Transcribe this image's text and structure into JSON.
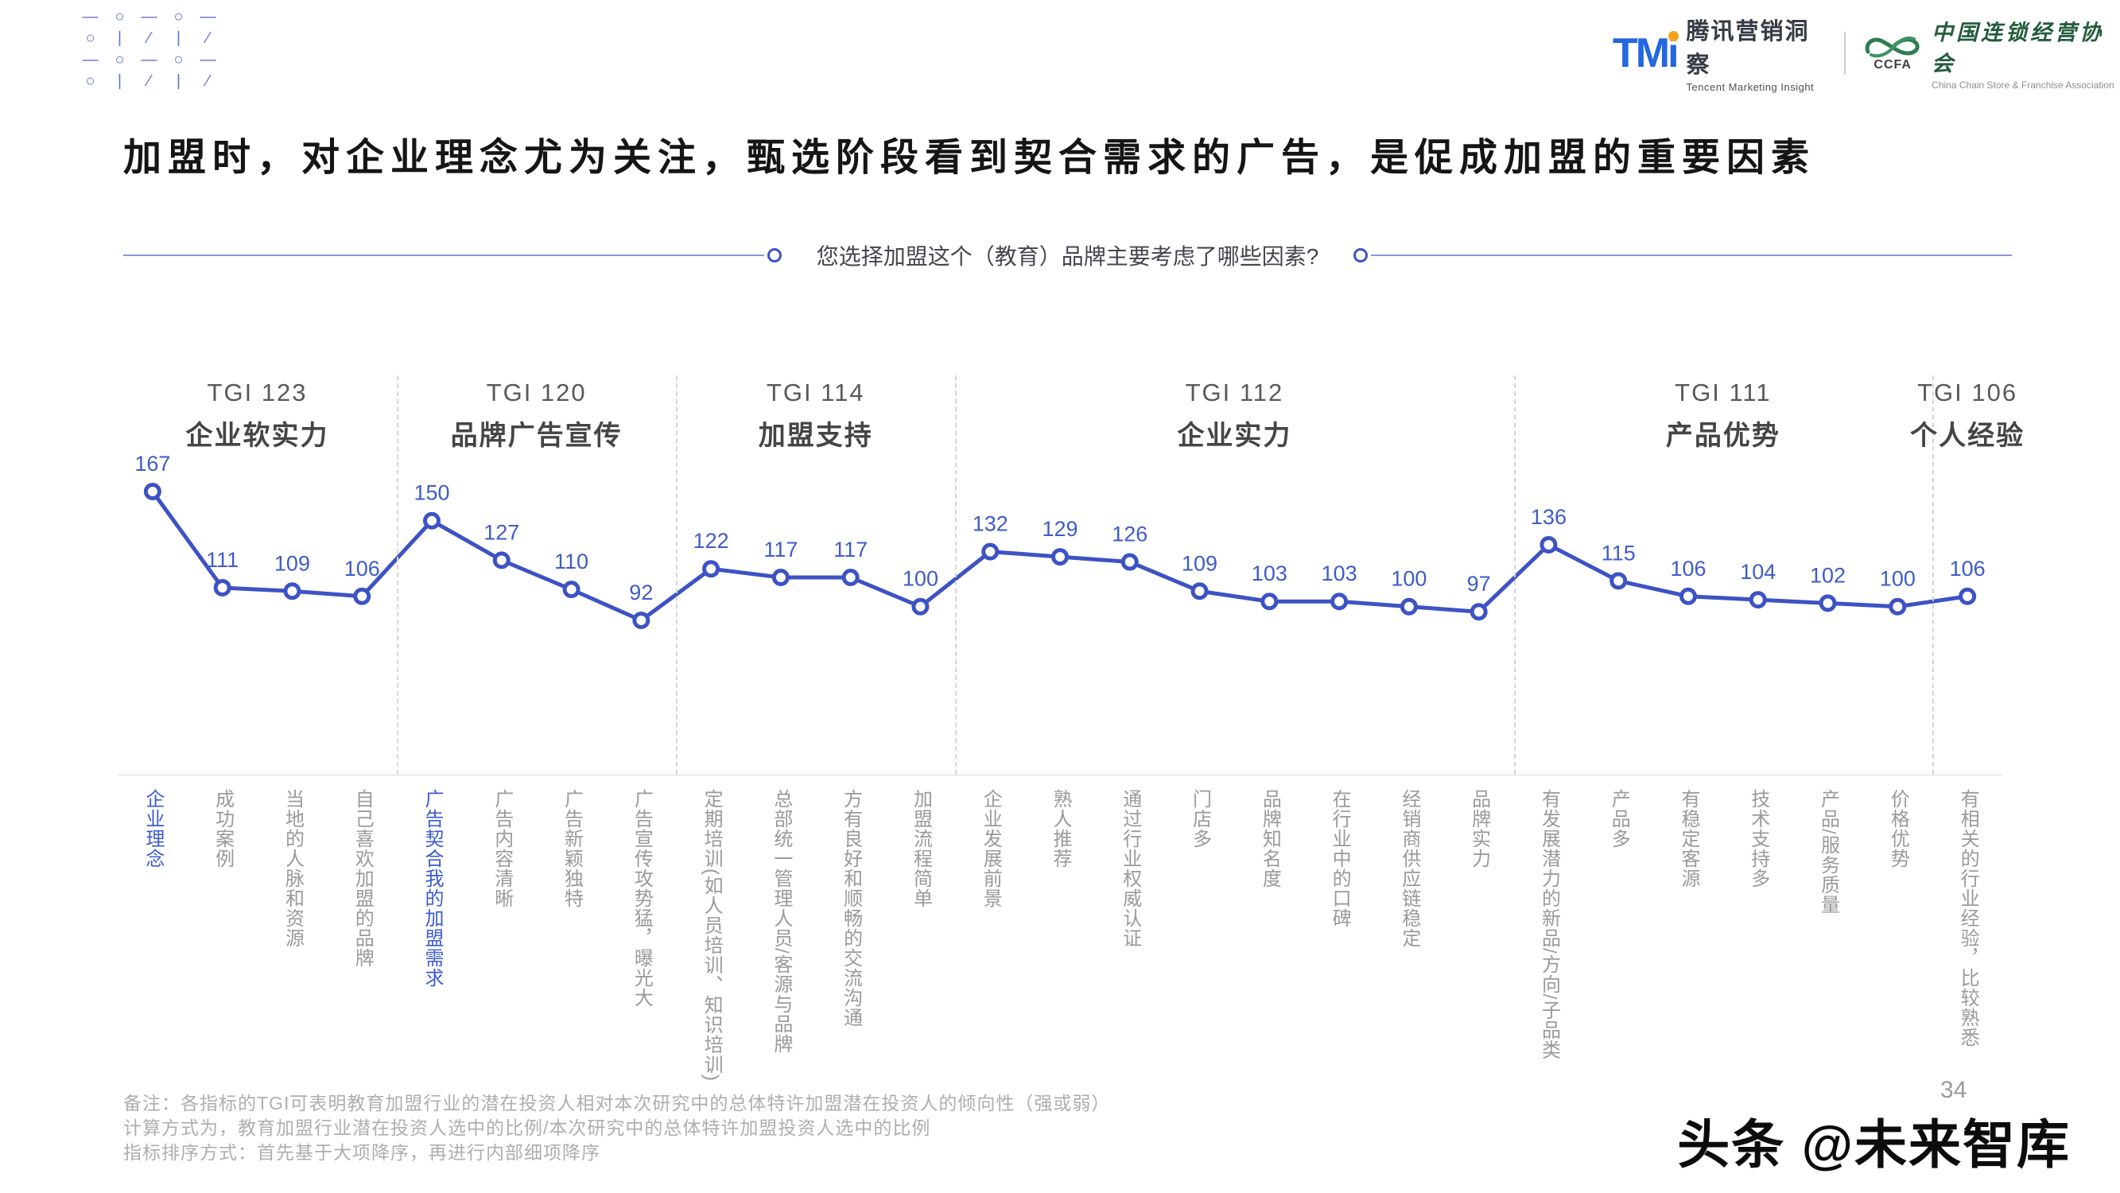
{
  "header": {
    "deco_rows": [
      [
        "—",
        "○",
        "—",
        "○",
        "—"
      ],
      [
        "○",
        "|",
        "⁄",
        "|",
        "⁄"
      ],
      [
        "—",
        "○",
        "—",
        "○",
        "—"
      ],
      [
        "○",
        "|",
        "⁄",
        "|",
        "⁄"
      ]
    ],
    "tmi": {
      "wordmark": "TMi",
      "name_cn": "腾讯营销洞察",
      "name_en": "Tencent Marketing Insight"
    },
    "ccfa": {
      "abbr": "CCFA",
      "name_cn": "中国连锁经营协会",
      "name_en": "China Chain Store & Franchise Association"
    }
  },
  "title": "加盟时，对企业理念尤为关注，甄选阶段看到契合需求的广告，是促成加盟的重要因素",
  "question": "您选择加盟这个（教育）品牌主要考虑了哪些因素?",
  "chart_data": {
    "type": "line",
    "title": "您选择加盟这个（教育）品牌主要考虑了哪些因素?",
    "ylabel": "TGI",
    "ylim": [
      85,
      175
    ],
    "grid": false,
    "legend": "none",
    "groups": [
      {
        "tgi_label": "TGI 123",
        "name": "企业软实力",
        "items": [
          {
            "label": "企业理念",
            "value": 167,
            "highlight": true
          },
          {
            "label": "成功案例",
            "value": 111,
            "highlight": false
          },
          {
            "label": "当地的人脉和资源",
            "value": 109,
            "highlight": false
          },
          {
            "label": "自己喜欢加盟的品牌",
            "value": 106,
            "highlight": false
          }
        ]
      },
      {
        "tgi_label": "TGI 120",
        "name": "品牌广告宣传",
        "items": [
          {
            "label": "广告契合我的加盟需求",
            "value": 150,
            "highlight": true
          },
          {
            "label": "广告内容清晰",
            "value": 127,
            "highlight": false
          },
          {
            "label": "广告新颖独特",
            "value": 110,
            "highlight": false
          },
          {
            "label": "广告宣传攻势猛，曝光大",
            "value": 92,
            "highlight": false
          }
        ]
      },
      {
        "tgi_label": "TGI 114",
        "name": "加盟支持",
        "items": [
          {
            "label": "定期培训(如人员培训、知识培训)",
            "value": 122,
            "highlight": false
          },
          {
            "label": "总部统一管理人员/客源与品牌",
            "value": 117,
            "highlight": false
          },
          {
            "label": "方有良好和顺畅的交流沟通",
            "value": 117,
            "highlight": false
          },
          {
            "label": "加盟流程简单",
            "value": 100,
            "highlight": false
          }
        ]
      },
      {
        "tgi_label": "TGI 112",
        "name": "企业实力",
        "items": [
          {
            "label": "企业发展前景",
            "value": 132,
            "highlight": false
          },
          {
            "label": "熟人推荐",
            "value": 129,
            "highlight": false
          },
          {
            "label": "通过行业权威认证",
            "value": 126,
            "highlight": false
          },
          {
            "label": "门店多",
            "value": 109,
            "highlight": false
          },
          {
            "label": "品牌知名度",
            "value": 103,
            "highlight": false
          },
          {
            "label": "在行业中的口碑",
            "value": 103,
            "highlight": false
          },
          {
            "label": "经销商供应链稳定",
            "value": 100,
            "highlight": false
          },
          {
            "label": "品牌实力",
            "value": 97,
            "highlight": false
          }
        ]
      },
      {
        "tgi_label": "TGI 111",
        "name": "产品优势",
        "items": [
          {
            "label": "有发展潜力的新品/方向/子品类",
            "value": 136,
            "highlight": false
          },
          {
            "label": "产品多",
            "value": 115,
            "highlight": false
          },
          {
            "label": "有稳定客源",
            "value": 106,
            "highlight": false
          },
          {
            "label": "技术支持多",
            "value": 104,
            "highlight": false
          },
          {
            "label": "产品/服务质量",
            "value": 102,
            "highlight": false
          },
          {
            "label": "价格优势",
            "value": 100,
            "highlight": false
          }
        ]
      },
      {
        "tgi_label": "TGI 106",
        "name": "个人经验",
        "items": [
          {
            "label": "有相关的行业经验，比较熟悉",
            "value": 106,
            "highlight": false
          }
        ]
      }
    ]
  },
  "notes": [
    "备注：各指标的TGI可表明教育加盟行业的潜在投资人相对本次研究中的总体特许加盟潜在投资人的倾向性（强或弱）",
    "计算方式为，教育加盟行业潜在投资人选中的比例/本次研究中的总体特许加盟投资人选中的比例",
    "指标排序方式：首先基于大项降序，再进行内部细项降序"
  ],
  "page_number": "34",
  "watermark": "头条 @未来智库",
  "colors": {
    "line_blue": "#3D52C4",
    "value_label_blue": "#3F5BC9",
    "highlight_label_blue": "#3D5BD0",
    "category_gray": "#9A9A9A",
    "divider_gray": "#D6D6D6",
    "tmi_blue": "#2468E0",
    "tmi_dot_orange": "#F5A21B",
    "ccfa_green": "#2E7D50",
    "question_line_blue": "#8C97D8"
  }
}
